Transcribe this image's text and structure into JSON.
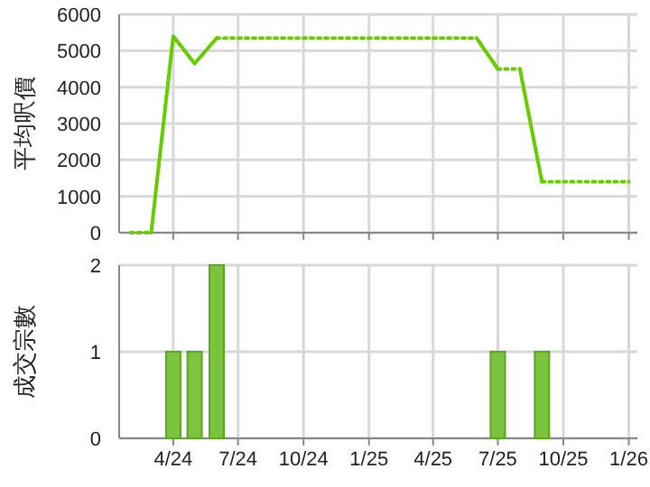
{
  "chart_data": [
    {
      "type": "line",
      "ylabel": "平均呎價",
      "xlim": [
        "2024-01-16",
        "2026-01-13"
      ],
      "ylim": [
        0,
        6000
      ],
      "yticks": [
        0,
        1000,
        2000,
        3000,
        4000,
        5000,
        6000
      ],
      "xticks": [
        {
          "value": "2024-04",
          "label": null
        },
        {
          "value": "2024-07",
          "label": null
        },
        {
          "value": "2024-10",
          "label": null
        },
        {
          "value": "2025-01",
          "label": null
        },
        {
          "value": "2025-04",
          "label": null
        },
        {
          "value": "2025-07",
          "label": null
        },
        {
          "value": "2025-10",
          "label": null
        },
        {
          "value": "2026-01",
          "label": null
        }
      ],
      "grid": true,
      "tick_labels": "y",
      "series": [
        {
          "color": "#66cc00",
          "line_style": "dotted",
          "x": [
            "2024-02",
            "2024-03"
          ],
          "values": [
            0,
            0
          ]
        },
        {
          "color": "#66cc00",
          "line_style": "solid",
          "x": [
            "2024-03",
            "2024-04",
            "2024-05",
            "2024-06"
          ],
          "values": [
            0,
            5400,
            4650,
            5350
          ]
        },
        {
          "color": "#66cc00",
          "line_style": "dotted",
          "x": [
            "2024-06",
            "2025-06"
          ],
          "values": [
            5350,
            5350
          ]
        },
        {
          "color": "#66cc00",
          "line_style": "solid",
          "x": [
            "2025-06",
            "2025-07"
          ],
          "values": [
            5350,
            4500
          ]
        },
        {
          "color": "#66cc00",
          "line_style": "dotted",
          "x": [
            "2025-07",
            "2025-08"
          ],
          "values": [
            4500,
            4500
          ]
        },
        {
          "color": "#66cc00",
          "line_style": "solid",
          "x": [
            "2025-08",
            "2025-09"
          ],
          "values": [
            4500,
            1400
          ]
        },
        {
          "color": "#66cc00",
          "line_style": "dotted",
          "x": [
            "2025-09",
            "2026-01"
          ],
          "values": [
            1400,
            1400
          ]
        }
      ]
    },
    {
      "type": "bar",
      "ylabel": "成交宗數",
      "xlim": [
        "2024-01-16",
        "2026-01-13"
      ],
      "ylim": [
        0,
        2
      ],
      "yticks": [
        0,
        1,
        2
      ],
      "xticks": [
        {
          "value": "2024-04",
          "label": "4/24"
        },
        {
          "value": "2024-07",
          "label": "7/24"
        },
        {
          "value": "2024-10",
          "label": "10/24"
        },
        {
          "value": "2025-01",
          "label": "1/25"
        },
        {
          "value": "2025-04",
          "label": "4/25"
        },
        {
          "value": "2025-07",
          "label": "7/25"
        },
        {
          "value": "2025-10",
          "label": "10/25"
        },
        {
          "value": "2026-01",
          "label": "1/26"
        }
      ],
      "grid": true,
      "x": [
        "2024-04",
        "2024-05",
        "2024-06",
        "2025-07",
        "2025-09"
      ],
      "values": [
        1,
        1,
        2,
        1,
        1
      ],
      "color": "#7cc440"
    }
  ]
}
